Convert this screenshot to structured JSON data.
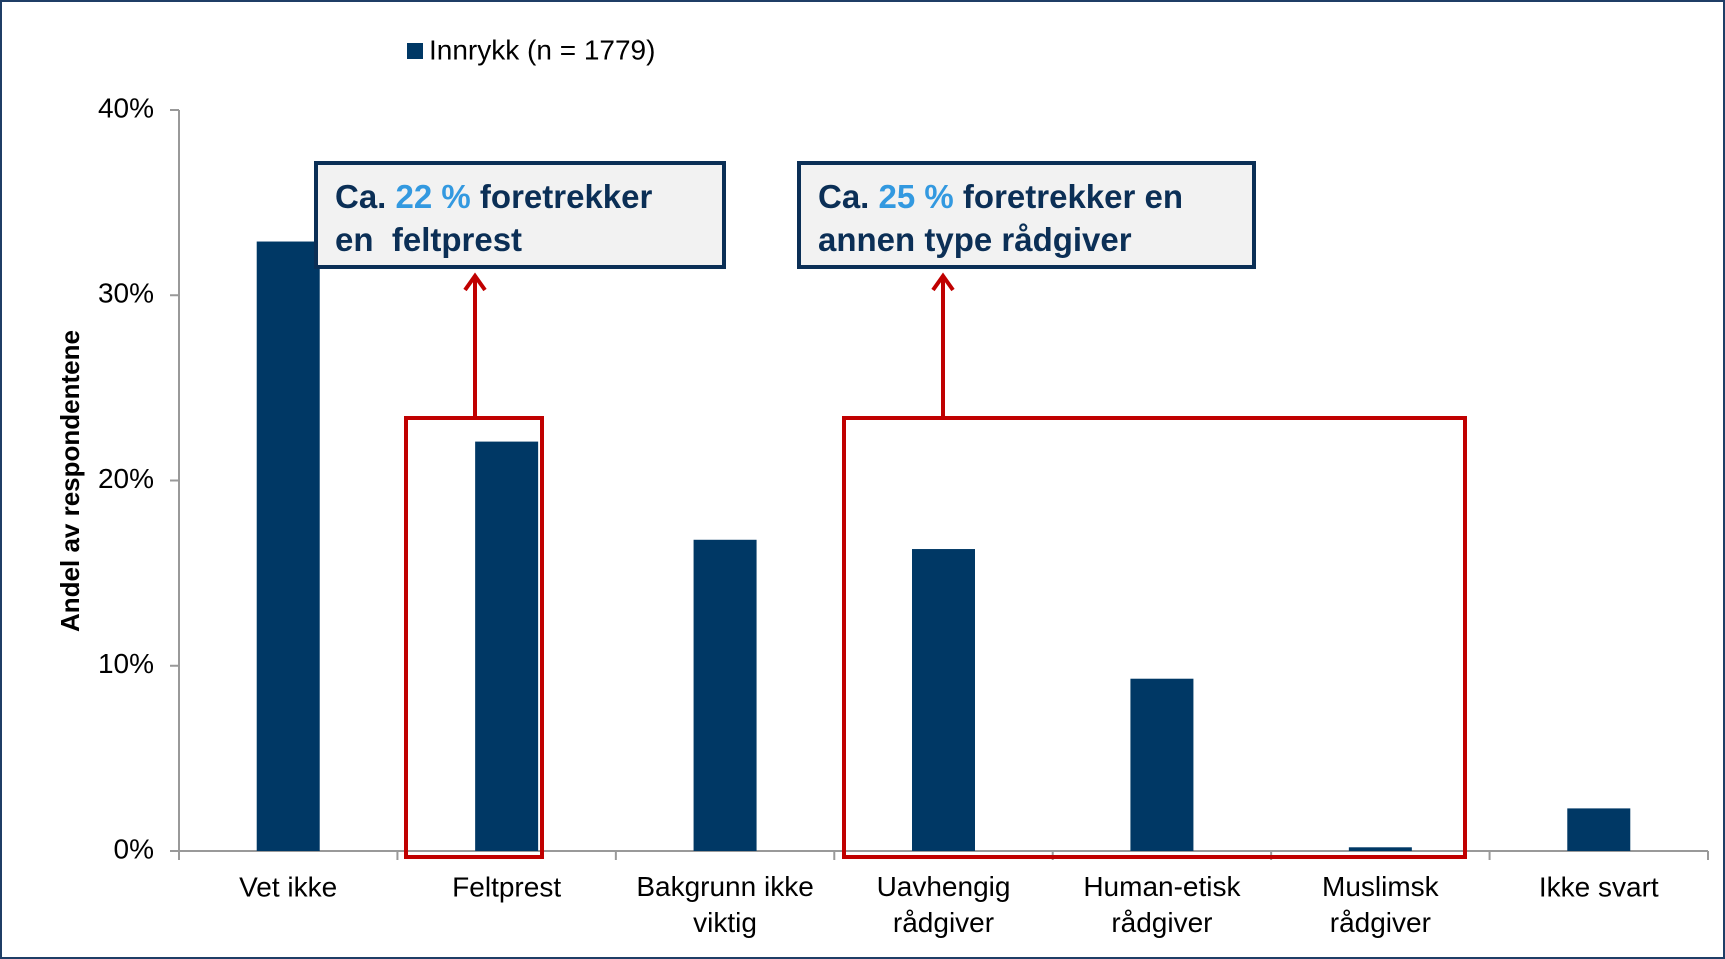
{
  "chart_data": {
    "type": "bar",
    "legend": "Innrykk (n = 1779)",
    "ylabel": "Andel av respondentene",
    "categories": [
      "Vet ikke",
      "Feltprest",
      "Bakgrunn ikke\nviktig",
      "Uavhengig\nrådgiver",
      "Human-etisk\nrådgiver",
      "Muslimsk\nrådgiver",
      "Ikke svart"
    ],
    "values": [
      32.9,
      22.1,
      16.8,
      16.3,
      9.3,
      0.2,
      2.3
    ],
    "color": "#003865",
    "ylim": [
      0,
      40
    ],
    "yticks": [
      {
        "value": 0,
        "label": "0%"
      },
      {
        "value": 10,
        "label": "10%"
      },
      {
        "value": 20,
        "label": "20%"
      },
      {
        "value": 30,
        "label": "30%"
      },
      {
        "value": 40,
        "label": "40%"
      }
    ],
    "annotations": [
      {
        "prefix": "Ca.",
        "highlight": "22 %",
        "rest": "foretrekker",
        "line2": "en  feltprest"
      },
      {
        "prefix": "Ca.",
        "highlight": "25 %",
        "rest": "foretrekker en",
        "line2": "annen type rådgiver"
      }
    ]
  }
}
